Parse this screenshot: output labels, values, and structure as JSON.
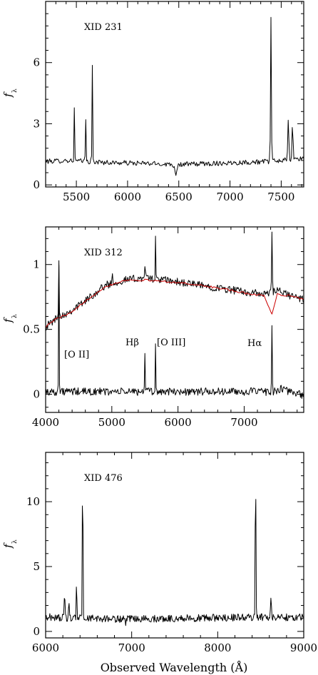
{
  "chart_data": [
    {
      "type": "line",
      "title": "XID 231",
      "ylabel": "f",
      "ylabel_sub": "λ",
      "xlim": [
        5200,
        7720
      ],
      "ylim": [
        -0.1,
        9.0
      ],
      "xticks": [
        5500,
        6000,
        6500,
        7000,
        7500
      ],
      "yticks": [
        0,
        3,
        6
      ],
      "series": [
        {
          "color": "#000000",
          "continuum": [
            [
              5200,
              1.15
            ],
            [
              5400,
              1.2
            ],
            [
              5800,
              1.1
            ],
            [
              6200,
              1.05
            ],
            [
              6500,
              1.0
            ],
            [
              6800,
              1.05
            ],
            [
              7100,
              1.1
            ],
            [
              7400,
              1.15
            ],
            [
              7720,
              1.3
            ]
          ],
          "noise": 0.12,
          "step": 8,
          "lines": [
            [
              5480,
              2.6,
              6
            ],
            [
              5590,
              2.5,
              6
            ],
            [
              5655,
              4.9,
              6
            ],
            [
              6470,
              -0.45,
              20
            ],
            [
              7400,
              7.1,
              8
            ],
            [
              7570,
              2.0,
              10
            ],
            [
              7610,
              1.7,
              10
            ]
          ]
        }
      ]
    },
    {
      "type": "line",
      "title": "XID 312",
      "ylabel": "f",
      "ylabel_sub": "λ",
      "xlim": [
        4000,
        7900
      ],
      "ylim": [
        -0.14,
        1.29
      ],
      "xticks": [
        4000,
        5000,
        6000,
        7000
      ],
      "yticks": [
        0,
        0.5,
        1
      ],
      "yticklabels": [
        "0",
        "0.5",
        "1"
      ],
      "annotations": [
        {
          "text": "[O II]",
          "x": 4200,
          "y": 0.25
        },
        {
          "text": "Hβ",
          "x": 5330,
          "y": 0.33
        },
        {
          "text": "[O III]",
          "x": 5800,
          "y": 0.33
        },
        {
          "text": "Hα",
          "x": 7170,
          "y": 0.33
        }
      ],
      "series": [
        {
          "color": "#000000",
          "continuum": [
            [
              4000,
              0.52
            ],
            [
              4150,
              0.58
            ],
            [
              4400,
              0.65
            ],
            [
              4600,
              0.72
            ],
            [
              4900,
              0.84
            ],
            [
              5200,
              0.88
            ],
            [
              5500,
              0.9
            ],
            [
              5800,
              0.88
            ],
            [
              6200,
              0.85
            ],
            [
              6600,
              0.82
            ],
            [
              7000,
              0.79
            ],
            [
              7300,
              0.77
            ],
            [
              7500,
              0.8
            ],
            [
              7700,
              0.76
            ],
            [
              7900,
              0.73
            ]
          ],
          "noise": 0.03,
          "step": 10,
          "lines": [
            [
              4200,
              0.45,
              10
            ],
            [
              5010,
              0.08,
              12
            ],
            [
              5500,
              0.1,
              10
            ],
            [
              5660,
              0.3,
              8
            ],
            [
              7420,
              0.45,
              10
            ]
          ]
        },
        {
          "color": "#cc0000",
          "continuum": [
            [
              4000,
              0.52
            ],
            [
              4150,
              0.58
            ],
            [
              4400,
              0.63
            ],
            [
              4600,
              0.72
            ],
            [
              4900,
              0.83
            ],
            [
              5200,
              0.88
            ],
            [
              5500,
              0.88
            ],
            [
              5800,
              0.87
            ],
            [
              6200,
              0.85
            ],
            [
              6600,
              0.82
            ],
            [
              7000,
              0.78
            ],
            [
              7300,
              0.76
            ],
            [
              7420,
              0.62
            ],
            [
              7500,
              0.77
            ],
            [
              7700,
              0.76
            ],
            [
              7900,
              0.73
            ]
          ],
          "noise": 0.008,
          "step": 20,
          "lines": []
        },
        {
          "color": "#000000",
          "continuum": [
            [
              4000,
              0.02
            ],
            [
              7500,
              0.02
            ],
            [
              7560,
              0.04
            ],
            [
              7900,
              -0.01
            ]
          ],
          "noise": 0.03,
          "step": 10,
          "lines": [
            [
              4200,
              0.98,
              8
            ],
            [
              5500,
              0.3,
              10
            ],
            [
              5660,
              0.36,
              8
            ],
            [
              7420,
              0.53,
              10
            ]
          ]
        }
      ]
    },
    {
      "type": "line",
      "title": "XID 476",
      "ylabel": "f",
      "ylabel_sub": "λ",
      "xlabel": "Observed Wavelength (Å)",
      "xlim": [
        6000,
        9000
      ],
      "ylim": [
        -0.5,
        13.8
      ],
      "xticks": [
        6000,
        7000,
        8000,
        9000
      ],
      "yticks": [
        0,
        5,
        10
      ],
      "series": [
        {
          "color": "#000000",
          "continuum": [
            [
              6000,
              1.1
            ],
            [
              6500,
              1.0
            ],
            [
              7000,
              0.95
            ],
            [
              7500,
              1.0
            ],
            [
              8000,
              1.05
            ],
            [
              8500,
              1.1
            ],
            [
              9000,
              1.1
            ]
          ],
          "noise": 0.28,
          "step": 7,
          "lines": [
            [
              6220,
              2.8,
              6
            ],
            [
              6270,
              1.8,
              6
            ],
            [
              6360,
              4.0,
              6
            ],
            [
              6430,
              11.4,
              8
            ],
            [
              6930,
              -0.8,
              10
            ],
            [
              8440,
              11.7,
              8
            ],
            [
              8620,
              1.6,
              10
            ]
          ]
        }
      ]
    }
  ]
}
